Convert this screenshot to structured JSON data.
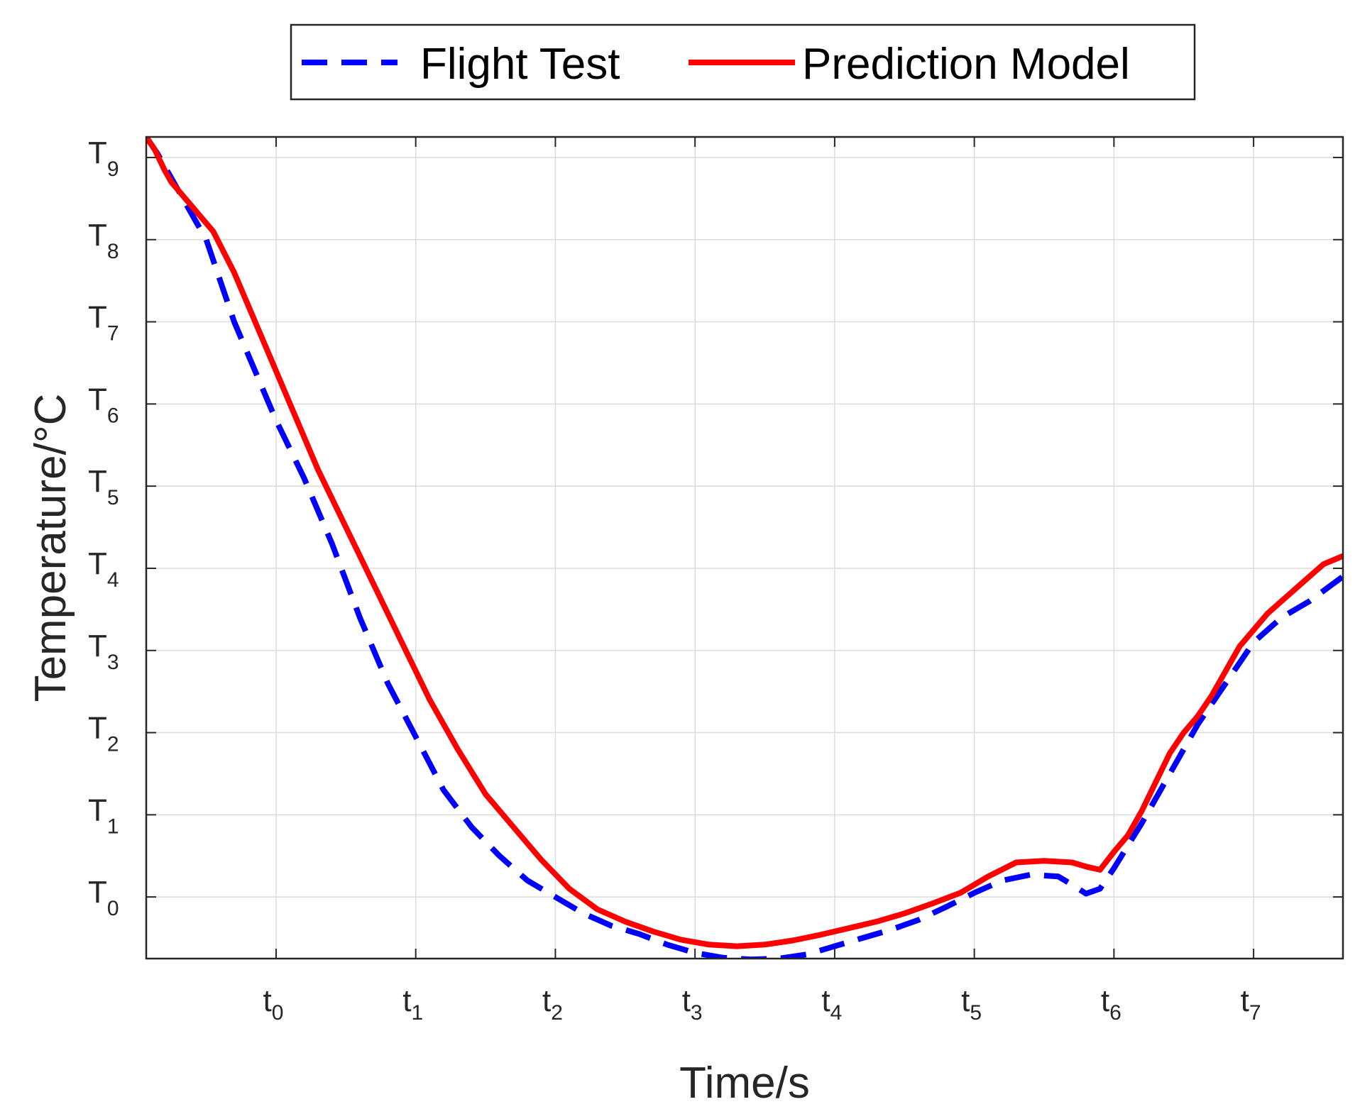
{
  "chart_data": {
    "type": "line",
    "xlabel": "Time/s",
    "ylabel": "Temperature/°C",
    "xlim": [
      -0.93,
      7.64
    ],
    "ylim": [
      -0.75,
      9.25
    ],
    "x_ticks": [
      {
        "base": "t",
        "sub": "0",
        "value": 0
      },
      {
        "base": "t",
        "sub": "1",
        "value": 1
      },
      {
        "base": "t",
        "sub": "2",
        "value": 2
      },
      {
        "base": "t",
        "sub": "3",
        "value": 3
      },
      {
        "base": "t",
        "sub": "4",
        "value": 4
      },
      {
        "base": "t",
        "sub": "5",
        "value": 5
      },
      {
        "base": "t",
        "sub": "6",
        "value": 6
      },
      {
        "base": "t",
        "sub": "7",
        "value": 7
      }
    ],
    "y_ticks": [
      {
        "base": "T",
        "sub": "0",
        "value": 0
      },
      {
        "base": "T",
        "sub": "1",
        "value": 1
      },
      {
        "base": "T",
        "sub": "2",
        "value": 2
      },
      {
        "base": "T",
        "sub": "3",
        "value": 3
      },
      {
        "base": "T",
        "sub": "4",
        "value": 4
      },
      {
        "base": "T",
        "sub": "5",
        "value": 5
      },
      {
        "base": "T",
        "sub": "6",
        "value": 6
      },
      {
        "base": "T",
        "sub": "7",
        "value": 7
      },
      {
        "base": "T",
        "sub": "8",
        "value": 8
      },
      {
        "base": "T",
        "sub": "9",
        "value": 9
      }
    ],
    "grid": true,
    "legend": {
      "placement": "top-center",
      "orientation": "horizontal"
    },
    "series": [
      {
        "name": "Flight Test",
        "color": "#0000ff",
        "style": "dashed",
        "x": [
          -0.93,
          -0.85,
          -0.7,
          -0.5,
          -0.3,
          -0.1,
          0.0,
          0.2,
          0.4,
          0.6,
          0.8,
          1.0,
          1.2,
          1.4,
          1.6,
          1.8,
          2.0,
          2.2,
          2.4,
          2.6,
          2.8,
          3.0,
          3.2,
          3.4,
          3.6,
          3.8,
          4.0,
          4.2,
          4.4,
          4.6,
          4.8,
          5.0,
          5.2,
          5.4,
          5.6,
          5.7,
          5.8,
          5.9,
          6.0,
          6.2,
          6.4,
          6.6,
          6.8,
          7.0,
          7.2,
          7.4,
          7.64
        ],
        "y": [
          9.25,
          9.05,
          8.6,
          8.0,
          7.0,
          6.2,
          5.8,
          5.1,
          4.3,
          3.4,
          2.6,
          1.95,
          1.3,
          0.85,
          0.5,
          0.2,
          0.0,
          -0.2,
          -0.35,
          -0.45,
          -0.58,
          -0.68,
          -0.74,
          -0.76,
          -0.75,
          -0.7,
          -0.6,
          -0.5,
          -0.4,
          -0.28,
          -0.12,
          0.05,
          0.2,
          0.27,
          0.25,
          0.15,
          0.04,
          0.1,
          0.35,
          0.9,
          1.5,
          2.1,
          2.6,
          3.1,
          3.4,
          3.6,
          3.9
        ]
      },
      {
        "name": "Prediction Model",
        "color": "#ff0000",
        "style": "solid",
        "x": [
          -0.93,
          -0.87,
          -0.8,
          -0.75,
          -0.6,
          -0.45,
          -0.3,
          -0.1,
          0.1,
          0.3,
          0.5,
          0.7,
          0.9,
          1.1,
          1.3,
          1.5,
          1.7,
          1.9,
          2.1,
          2.3,
          2.5,
          2.7,
          2.9,
          3.1,
          3.3,
          3.5,
          3.7,
          3.9,
          4.1,
          4.3,
          4.5,
          4.7,
          4.9,
          5.1,
          5.3,
          5.5,
          5.7,
          5.8,
          5.9,
          6.0,
          6.1,
          6.2,
          6.3,
          6.4,
          6.5,
          6.6,
          6.7,
          6.8,
          6.9,
          7.0,
          7.1,
          7.2,
          7.3,
          7.4,
          7.5,
          7.64
        ],
        "y": [
          9.25,
          9.1,
          8.85,
          8.7,
          8.4,
          8.1,
          7.6,
          6.8,
          6.0,
          5.2,
          4.5,
          3.8,
          3.1,
          2.4,
          1.8,
          1.25,
          0.85,
          0.45,
          0.1,
          -0.15,
          -0.3,
          -0.42,
          -0.52,
          -0.58,
          -0.6,
          -0.58,
          -0.53,
          -0.46,
          -0.38,
          -0.3,
          -0.2,
          -0.08,
          0.05,
          0.25,
          0.42,
          0.44,
          0.42,
          0.37,
          0.33,
          0.55,
          0.75,
          1.05,
          1.4,
          1.75,
          2.0,
          2.2,
          2.45,
          2.75,
          3.05,
          3.25,
          3.45,
          3.6,
          3.75,
          3.9,
          4.05,
          4.15
        ]
      }
    ]
  }
}
